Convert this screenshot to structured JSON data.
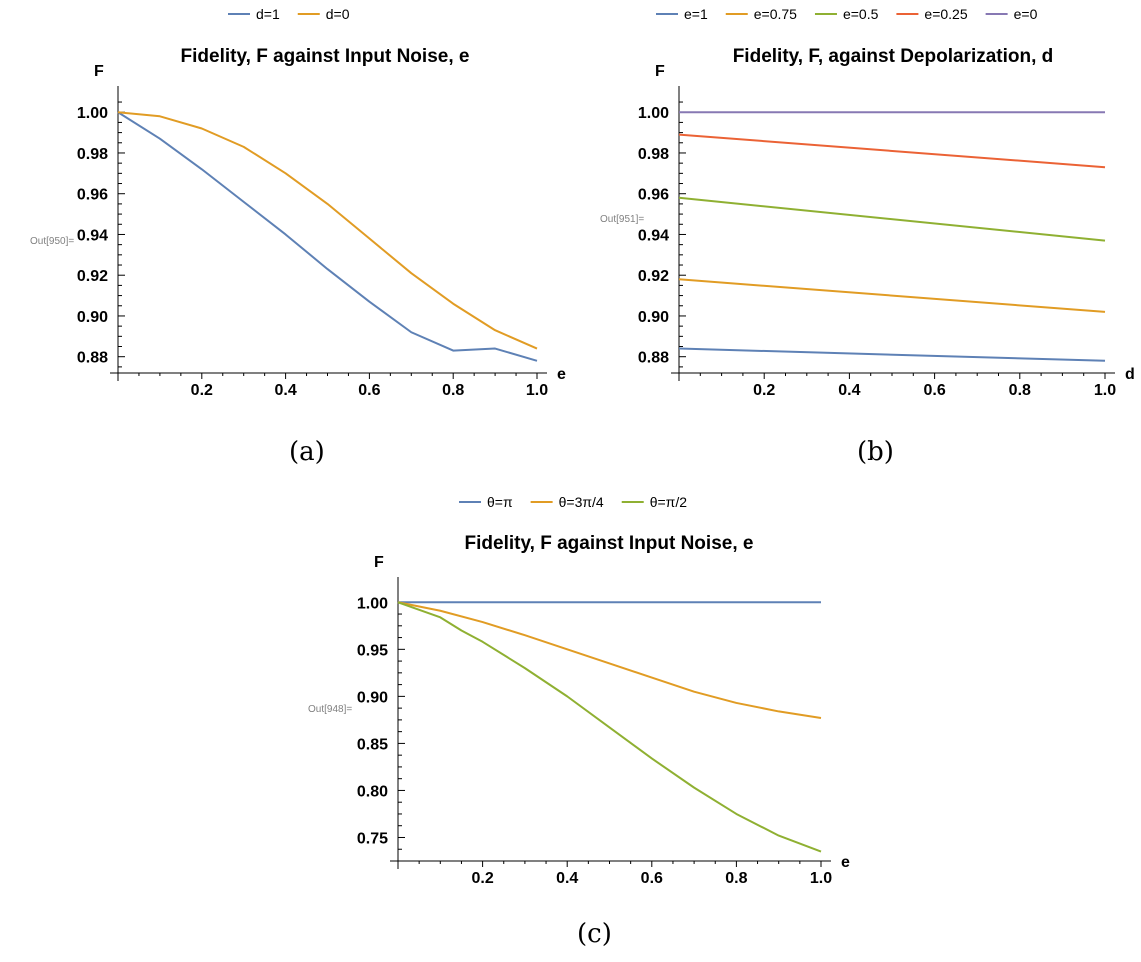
{
  "chart_data": [
    {
      "id": "a",
      "type": "line",
      "title": "Fidelity, F against Input Noise, e",
      "xlabel": "e",
      "ylabel": "F",
      "out_label": "Out[950]=",
      "caption": "(a)",
      "xlim": [
        0,
        1
      ],
      "ylim": [
        0.872,
        1.006
      ],
      "xticks": [
        0.2,
        0.4,
        0.6,
        0.8,
        1.0
      ],
      "xtick_labels": [
        "0.2",
        "0.4",
        "0.6",
        "0.8",
        "1.0"
      ],
      "yticks": [
        0.88,
        0.9,
        0.92,
        0.94,
        0.96,
        0.98,
        1.0
      ],
      "ytick_labels": [
        "0.88",
        "0.90",
        "0.92",
        "0.94",
        "0.96",
        "0.98",
        "1.00"
      ],
      "legend_position": "top-center",
      "series": [
        {
          "name": "d=1",
          "color": "#5E81B5",
          "x": [
            0,
            0.1,
            0.2,
            0.3,
            0.4,
            0.5,
            0.6,
            0.7,
            0.8,
            0.9,
            1.0
          ],
          "y": [
            1.0,
            0.987,
            0.972,
            0.956,
            0.94,
            0.923,
            0.907,
            0.892,
            0.883,
            0.884,
            0.878
          ]
        },
        {
          "name": "d=0",
          "color": "#E19C24",
          "x": [
            0,
            0.1,
            0.2,
            0.3,
            0.4,
            0.5,
            0.6,
            0.7,
            0.8,
            0.9,
            1.0
          ],
          "y": [
            1.0,
            0.998,
            0.992,
            0.983,
            0.97,
            0.955,
            0.938,
            0.921,
            0.906,
            0.893,
            0.884
          ]
        }
      ]
    },
    {
      "id": "b",
      "type": "line",
      "title": "Fidelity, F, against Depolarization, d",
      "xlabel": "d",
      "ylabel": "F",
      "out_label": "Out[951]=",
      "caption": "(b)",
      "xlim": [
        0,
        1
      ],
      "ylim": [
        0.872,
        1.006
      ],
      "xticks": [
        0.2,
        0.4,
        0.6,
        0.8,
        1.0
      ],
      "xtick_labels": [
        "0.2",
        "0.4",
        "0.6",
        "0.8",
        "1.0"
      ],
      "yticks": [
        0.88,
        0.9,
        0.92,
        0.94,
        0.96,
        0.98,
        1.0
      ],
      "ytick_labels": [
        "0.88",
        "0.90",
        "0.92",
        "0.94",
        "0.96",
        "0.98",
        "1.00"
      ],
      "legend_position": "top-center",
      "series": [
        {
          "name": "e=1",
          "color": "#5E81B5",
          "x": [
            0,
            1
          ],
          "y": [
            0.884,
            0.878
          ]
        },
        {
          "name": "e=0.75",
          "color": "#E19C24",
          "x": [
            0,
            1
          ],
          "y": [
            0.918,
            0.902
          ]
        },
        {
          "name": "e=0.5",
          "color": "#8FB032",
          "x": [
            0,
            1
          ],
          "y": [
            0.958,
            0.937
          ]
        },
        {
          "name": "e=0.25",
          "color": "#EB6235",
          "x": [
            0,
            1
          ],
          "y": [
            0.989,
            0.973
          ]
        },
        {
          "name": "e=0",
          "color": "#8778B3",
          "x": [
            0,
            1
          ],
          "y": [
            1.0,
            1.0
          ]
        }
      ]
    },
    {
      "id": "c",
      "type": "line",
      "title": "Fidelity, F against Input Noise, e",
      "xlabel": "e",
      "ylabel": "F",
      "out_label": "Out[948]=",
      "caption": "(c)",
      "xlim": [
        0,
        1
      ],
      "ylim": [
        0.725,
        1.012
      ],
      "xticks": [
        0.2,
        0.4,
        0.6,
        0.8,
        1.0
      ],
      "xtick_labels": [
        "0.2",
        "0.4",
        "0.6",
        "0.8",
        "1.0"
      ],
      "yticks": [
        0.75,
        0.8,
        0.85,
        0.9,
        0.95,
        1.0
      ],
      "ytick_labels": [
        "0.75",
        "0.80",
        "0.85",
        "0.90",
        "0.95",
        "1.00"
      ],
      "legend_position": "top-center",
      "series": [
        {
          "name": "θ=π",
          "color": "#5E81B5",
          "x": [
            0,
            1
          ],
          "y": [
            1.0,
            1.0
          ]
        },
        {
          "name": "θ=3π/4",
          "color": "#E19C24",
          "x": [
            0,
            0.1,
            0.2,
            0.3,
            0.4,
            0.5,
            0.6,
            0.7,
            0.8,
            0.9,
            1.0
          ],
          "y": [
            1.0,
            0.991,
            0.979,
            0.965,
            0.95,
            0.935,
            0.92,
            0.905,
            0.893,
            0.884,
            0.877
          ]
        },
        {
          "name": "θ=π/2",
          "color": "#8FB032",
          "x": [
            0,
            0.1,
            0.15,
            0.2,
            0.3,
            0.4,
            0.5,
            0.6,
            0.7,
            0.8,
            0.9,
            1.0
          ],
          "y": [
            1.0,
            0.984,
            0.97,
            0.958,
            0.93,
            0.9,
            0.867,
            0.834,
            0.803,
            0.775,
            0.752,
            0.735
          ]
        }
      ]
    }
  ]
}
